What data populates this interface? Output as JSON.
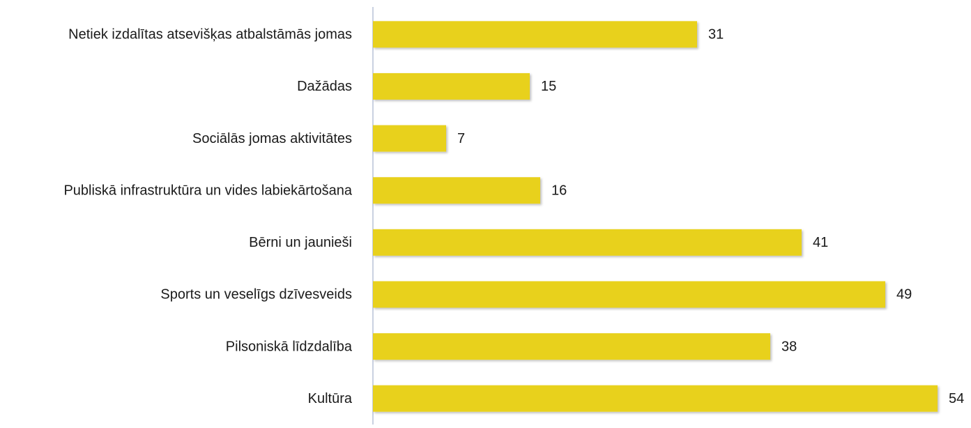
{
  "chart_data": {
    "type": "barh",
    "categories": [
      "Netiek izdalītas atsevišķas atbalstāmās jomas",
      "Dažādas",
      "Sociālās jomas aktivitātes",
      "Publiskā infrastruktūra un vides labiekārtošana",
      "Bērni un jaunieši",
      "Sports un veselīgs dzīvesveids",
      "Pilsoniskā līdzdalība",
      "Kultūra"
    ],
    "values": [
      31,
      15,
      7,
      16,
      41,
      49,
      38,
      54
    ],
    "color": "#e8d11c",
    "xlim": [
      0,
      57
    ]
  }
}
